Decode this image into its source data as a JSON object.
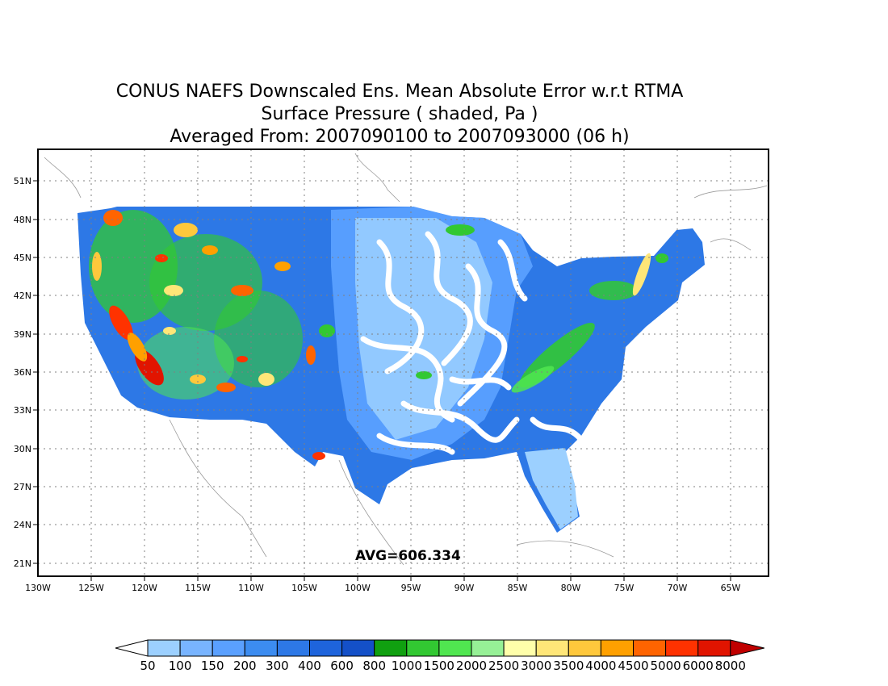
{
  "title": {
    "line1": "CONUS NAEFS Downscaled Ens. Mean Absolute Error w.r.t RTMA",
    "line2": "Surface Pressure ( shaded, Pa )",
    "line3": "Averaged From: 2007090100 to 2007093000 (06 h)"
  },
  "map": {
    "lon_ticks": [
      "130W",
      "125W",
      "120W",
      "115W",
      "110W",
      "105W",
      "100W",
      "95W",
      "90W",
      "85W",
      "80W",
      "75W",
      "70W",
      "65W"
    ],
    "lat_ticks": [
      "51N",
      "48N",
      "45N",
      "42N",
      "39N",
      "36N",
      "33N",
      "30N",
      "27N",
      "24N",
      "21N"
    ],
    "avg_label": "AVG=606.334",
    "grid": "dotted"
  },
  "colorbar": {
    "levels": [
      "50",
      "100",
      "150",
      "200",
      "300",
      "400",
      "600",
      "800",
      "1000",
      "1500",
      "2000",
      "2500",
      "3000",
      "3500",
      "4000",
      "4500",
      "5000",
      "6000",
      "8000"
    ],
    "colors": [
      "#ffffff",
      "#9cd0ff",
      "#78b4ff",
      "#5aa0ff",
      "#3c8cf0",
      "#2d78e6",
      "#1e64dc",
      "#1450c8",
      "#10a010",
      "#32c832",
      "#50e650",
      "#96f096",
      "#ffffaa",
      "#ffe678",
      "#ffc83c",
      "#ffa000",
      "#ff6400",
      "#ff3200",
      "#e11400",
      "#c00000"
    ]
  }
}
